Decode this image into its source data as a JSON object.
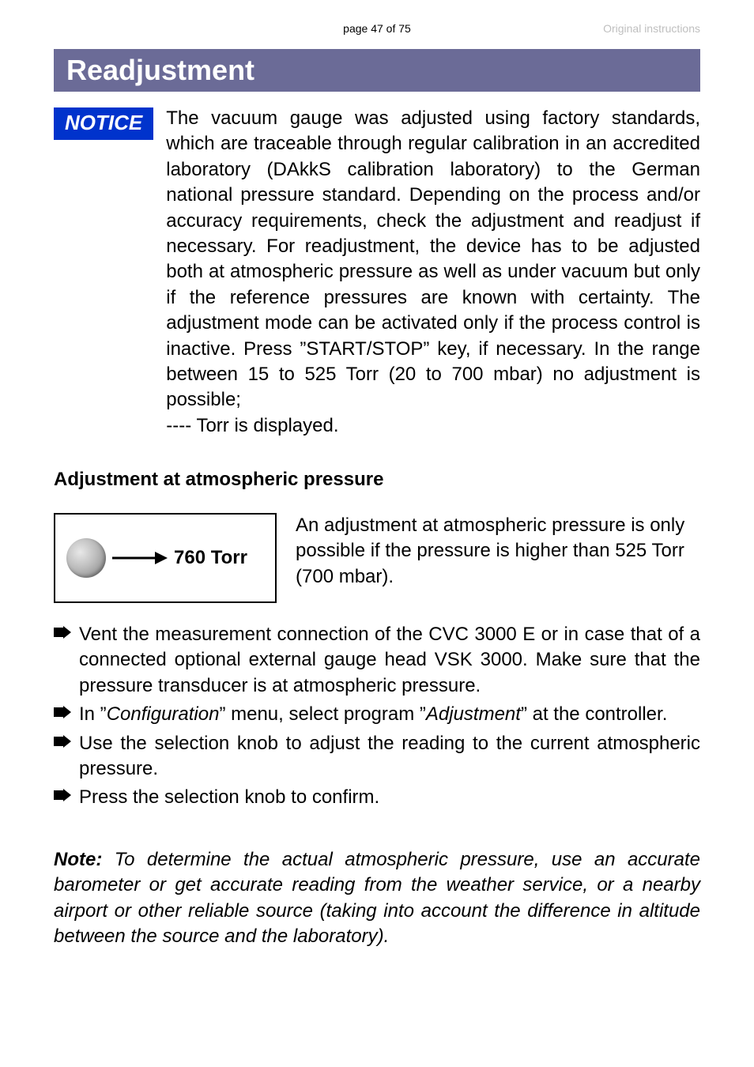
{
  "header": {
    "center": "page 47 of 75",
    "right": "Original instructions"
  },
  "section_title": "Readjustment",
  "notice": {
    "badge": "NOTICE",
    "text": "The vacuum gauge was adjusted using factory standards, which are traceable through regular calibration in an accredited laboratory (DAkkS calibration laboratory) to the German national pressure standard. Depending on the process and/or accuracy requirements, check the adjustment and readjust if necessary. For readjustment, the device has to be adjusted both at atmospheric pressure as well as under vacuum but only if the reference pressures are known with certainty. The adjustment mode can be activated only if the process control is inactive. Press ”START/STOP” key, if necessary. In the range between 15 to 525 Torr (20 to 700 mbar) no adjustment is possible;",
    "tail": "---- Torr is displayed."
  },
  "sub_heading": "Adjustment at atmospheric pressure",
  "diagram": {
    "value": "760 Torr",
    "caption": "An adjustment at atmospheric pressure is only possible if the pressure is higher than 525 Torr (700 mbar)."
  },
  "bullets": [
    "Vent the measurement connection of the CVC 3000 E or in case that of a connected optional external gauge head VSK 3000. Make sure that the pressure transducer is at atmospheric pressure.",
    "In ”Configuration” menu, select program ”Adjustment” at the controller.",
    "Use the selection knob to adjust the reading to the current atmospheric pressure.",
    "Press the selection knob to confirm."
  ],
  "bullet_special_index": 1,
  "bullet_special_html": "In ”<i>Configuration</i>” menu, select program ”<i>Adjustment</i>” at the controller.",
  "note": {
    "label": "Note:",
    "body": " To determine the actual atmospheric pressure, use an accurate barometer or get accurate reading from the weather service, or a nearby airport or other reliable source (taking into account the difference in altitude between the source and the laboratory)."
  },
  "colors": {
    "section_bg": "#6b6b97",
    "notice_bg": "#0033cc",
    "header_gray": "#bfbfbf"
  }
}
